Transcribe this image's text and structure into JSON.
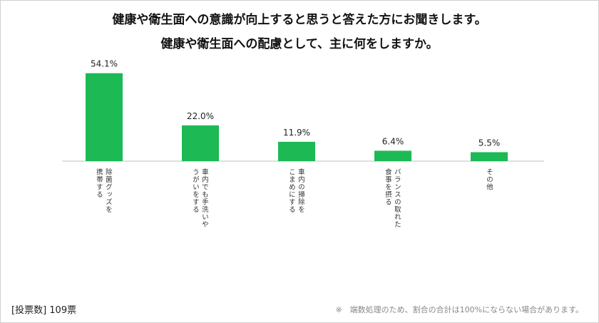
{
  "title_line1": "健康や衛生面への意識が向上すると思うと答えた方にお聞きします。",
  "title_line2": "健康や衛生面への配慮として、主に何をしますか。",
  "chart_data": {
    "type": "bar",
    "categories": [
      [
        "除菌グッズを",
        "携帯する"
      ],
      [
        "車内でも手洗いや",
        "うがいをする"
      ],
      [
        "車内の掃除を",
        "こまめにする"
      ],
      [
        "バランスの取れた",
        "食事を摂る"
      ],
      [
        "その他"
      ]
    ],
    "values": [
      54.1,
      22.0,
      11.9,
      6.4,
      5.5
    ],
    "value_labels": [
      "54.1%",
      "22.0%",
      "11.9%",
      "6.4%",
      "5.5%"
    ],
    "bar_color": "#1db954"
  },
  "footer_left": "[投票数] 109票",
  "footer_note": "※　端数処理のため、割合の合計は100%にならない場合があります。"
}
